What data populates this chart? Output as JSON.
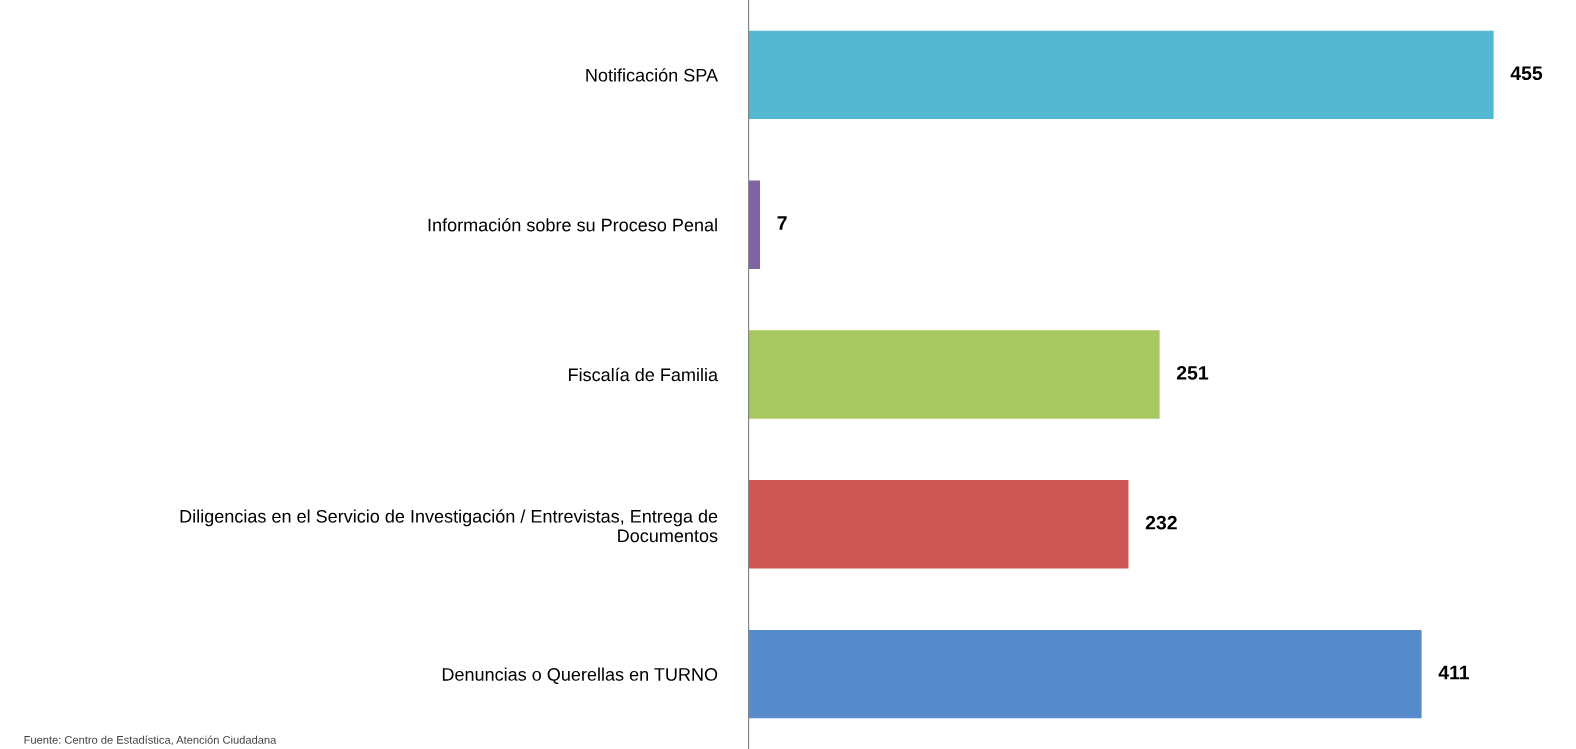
{
  "chart_data": {
    "type": "bar",
    "orientation": "horizontal",
    "categories": [
      "Notificación SPA",
      "Información sobre su Proceso Penal",
      "Fiscalía de Familia",
      "Diligencias en el Servicio de Investigación / Entrevistas, Entrega de\nDocumentos",
      "Denuncias o Querellas en TURNO"
    ],
    "values": [
      455,
      7,
      251,
      232,
      411
    ],
    "colors": [
      "#55b8d3",
      "#8064a2",
      "#a7c760",
      "#cd5855",
      "#578acb"
    ],
    "data_labels": true,
    "grid": false,
    "legend": false,
    "tick_labels": "y",
    "annotations": [
      "Fuente: Centro de Estadística, Atención Ciudadana"
    ]
  }
}
